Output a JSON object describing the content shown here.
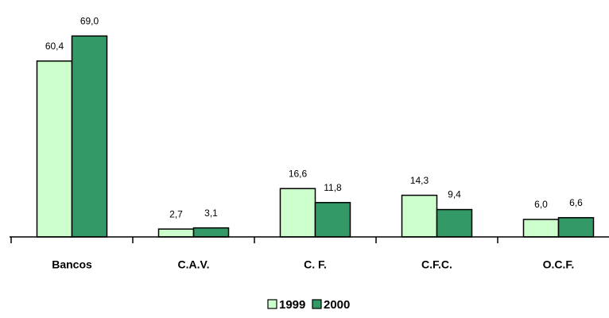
{
  "chart_data": {
    "type": "bar",
    "categories": [
      "Bancos",
      "C.A.V.",
      "C. F.",
      "C.F.C.",
      "O.C.F."
    ],
    "series": [
      {
        "name": "1999",
        "color": "#ccffcc",
        "values": [
          60.4,
          2.7,
          16.6,
          14.3,
          6.0
        ],
        "value_labels": [
          "60,4",
          "2,7",
          "16,6",
          "14,3",
          "6,0"
        ]
      },
      {
        "name": "2000",
        "color": "#339966",
        "values": [
          69.0,
          3.1,
          11.8,
          9.4,
          6.6
        ],
        "value_labels": [
          "69,0",
          "3,1",
          "11,8",
          "9,4",
          "6,6"
        ]
      }
    ],
    "ylim": [
      0,
      80
    ],
    "legend": "bottom"
  }
}
